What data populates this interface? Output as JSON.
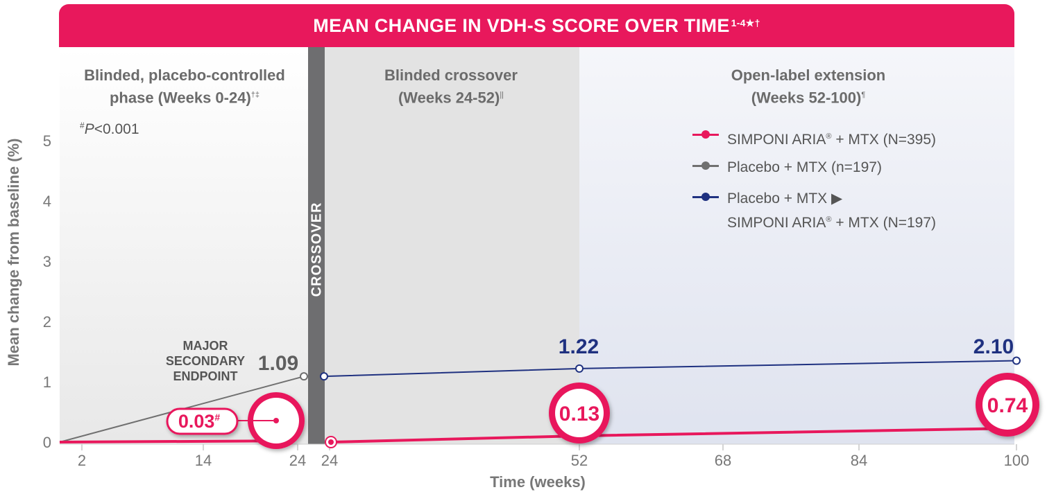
{
  "colors": {
    "accent": "#e8185c",
    "gray": "#707070",
    "navy": "#1f3180",
    "phase1_bg": "#efefef",
    "phase2_bg": "#e2e2e2",
    "phase3_bg": "#e6e9f3"
  },
  "chart_data": {
    "type": "line",
    "title": "MEAN CHANGE IN VDH-S SCORE OVER TIME",
    "title_sup": "1-4★†",
    "xlabel": "Time (weeks)",
    "ylabel": "Mean change from baseline (%)",
    "ylim": [
      0,
      5
    ],
    "yticks": [
      "0",
      "1",
      "2",
      "3",
      "4",
      "5"
    ],
    "xticks": [
      "2",
      "14",
      "24",
      "24",
      "52",
      "68",
      "84",
      "100"
    ],
    "phases": [
      {
        "line1": "Blinded, placebo-controlled",
        "line2": "phase (Weeks 0-24)",
        "sup": "†‡"
      },
      {
        "line1": "Blinded crossover",
        "line2": "(Weeks 24-52)",
        "sup": "||"
      },
      {
        "line1": "Open-label extension",
        "line2": "(Weeks 52-100)",
        "sup": "¶"
      }
    ],
    "crossover_label": "CROSSOVER",
    "pvalue_note": {
      "sup": "#",
      "text_p": "P",
      "text_rest": "<0.001"
    },
    "endpoint_label": [
      "MAJOR",
      "SECONDARY",
      "ENDPOINT"
    ],
    "series": [
      {
        "name": "SIMPONI ARIA® + MTX (N=395)",
        "color": "#e8185c",
        "points": [
          {
            "week": 0,
            "value": 0
          },
          {
            "week": 24,
            "value": 0.03
          },
          {
            "week": 52,
            "value": 0.13
          },
          {
            "week": 100,
            "value": 0.74
          }
        ],
        "labels": [
          "0.03",
          "0.13",
          "0.74"
        ]
      },
      {
        "name": "Placebo + MTX (n=197)",
        "color": "#707070",
        "points": [
          {
            "week": 0,
            "value": 0
          },
          {
            "week": 24,
            "value": 1.09
          }
        ],
        "labels": [
          "1.09"
        ]
      },
      {
        "name": "Placebo + MTX ▶ SIMPONI ARIA® + MTX (N=197)",
        "color": "#1f3180",
        "points": [
          {
            "week": 24,
            "value": 1.09
          },
          {
            "week": 52,
            "value": 1.22
          },
          {
            "week": 100,
            "value": 2.1
          }
        ],
        "labels": [
          "1.22",
          "2.10"
        ]
      }
    ],
    "legend_placement": "top-right",
    "grid": false
  },
  "legend": {
    "item1": {
      "name": "SIMPONI ARIA",
      "sup": "®",
      "rest": " + MTX (N=395)"
    },
    "item2": {
      "name": "Placebo + MTX (n=197)"
    },
    "item3": {
      "line1": "Placebo + MTX ▶",
      "line2_name": "SIMPONI ARIA",
      "line2_sup": "®",
      "line2_rest": " + MTX (N=197)"
    }
  },
  "labels": {
    "l003": "0.03",
    "l003_sup": "#",
    "l013": "0.13",
    "l074": "0.74",
    "l109": "1.09",
    "l122": "1.22",
    "l210": "2.10"
  }
}
